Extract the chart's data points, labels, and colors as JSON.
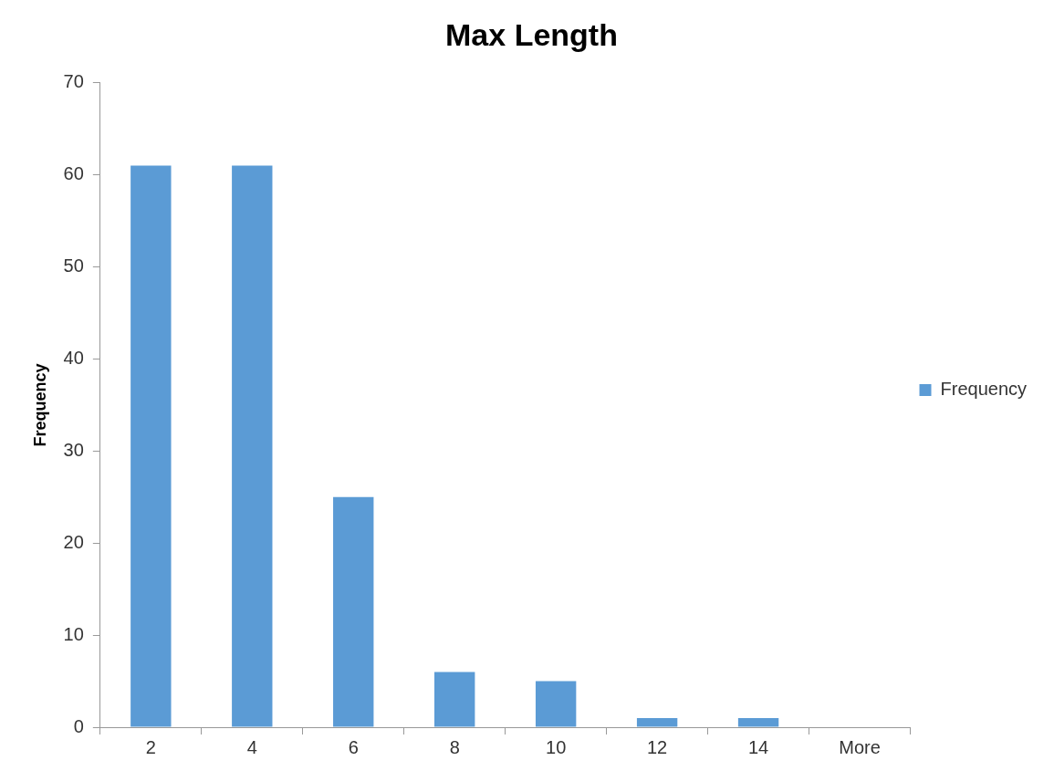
{
  "chart_data": {
    "type": "bar",
    "title": "Max Length",
    "ylabel": "Frequency",
    "categories": [
      "2",
      "4",
      "6",
      "8",
      "10",
      "12",
      "14",
      "More"
    ],
    "series": [
      {
        "name": "Frequency",
        "color": "#5b9bd5",
        "values": [
          61,
          61,
          25,
          6,
          5,
          1,
          1,
          0
        ]
      }
    ],
    "ylim": [
      0,
      70
    ],
    "yticks": [
      0,
      10,
      20,
      30,
      40,
      50,
      60,
      70
    ],
    "grid": false,
    "legend": "right"
  }
}
